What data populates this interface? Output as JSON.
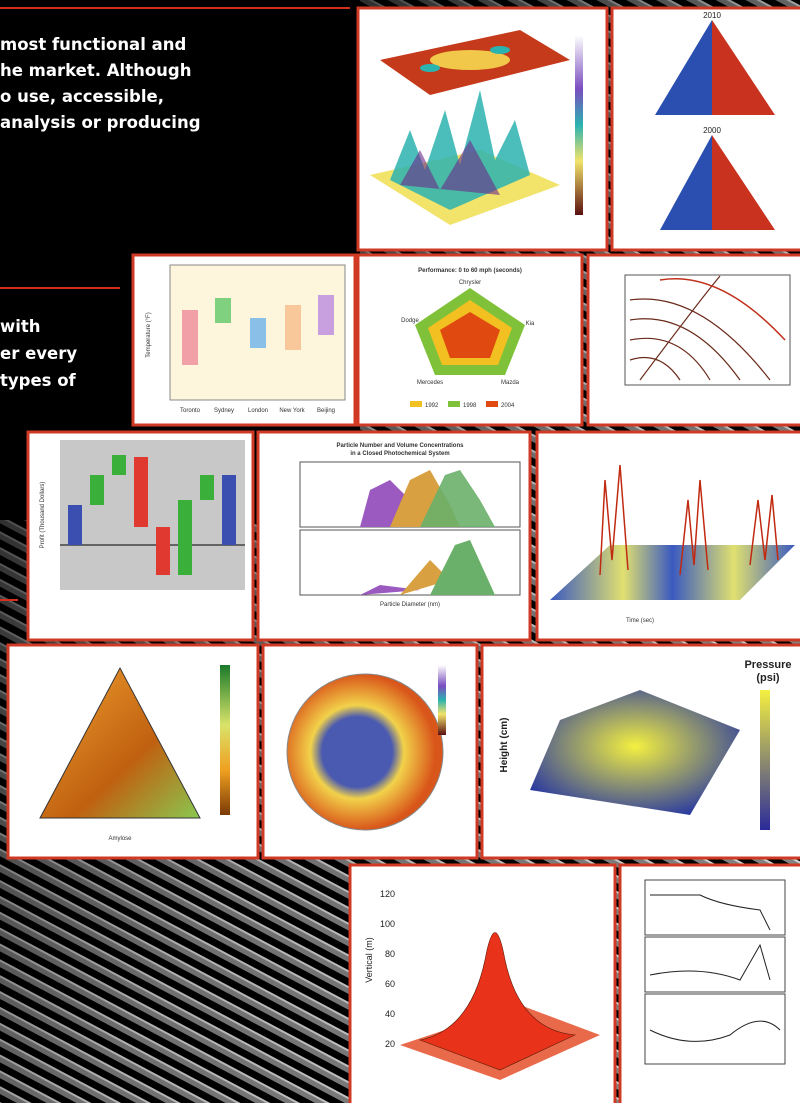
{
  "intro_lines": [
    "most functional and",
    "he market. Although",
    "o use, accessible,",
    "analysis or producing"
  ],
  "feature_lines": [
    "with",
    "er every",
    "types of"
  ],
  "panels": {
    "pyramid": {
      "top_year": "2010",
      "bottom_year": "2000"
    },
    "box_plot": {
      "y_label": "Temperature (°F)",
      "categories": [
        "Toronto",
        "Sydney",
        "London",
        "New York",
        "Beijing"
      ]
    },
    "radar": {
      "title": "Performance: 0 to 60 mph (seconds)",
      "axes": [
        "Chrysler",
        "Kia",
        "Mazda",
        "Mercedes",
        "Dodge"
      ],
      "legend": [
        "1992",
        "1998",
        "2004"
      ]
    },
    "waterfall": {
      "y_label": "Profit (Thousand Dollars)"
    },
    "particle": {
      "title": "Particle Number and Volume Concentrations",
      "subtitle": "in a Closed Photochemical System",
      "x_label": "Particle Diameter (nm)"
    },
    "waterfall_3d": {
      "x_label": "Time (sec)"
    },
    "ternary": {
      "x_label": "Amylose"
    },
    "surface": {
      "legend_title": [
        "Pressure",
        "(psi)"
      ],
      "z_label": "Height (cm)"
    },
    "gaussian": {
      "y_label": "Vertical (m)",
      "yticks": [
        20,
        40,
        60,
        80,
        100,
        120
      ]
    }
  }
}
